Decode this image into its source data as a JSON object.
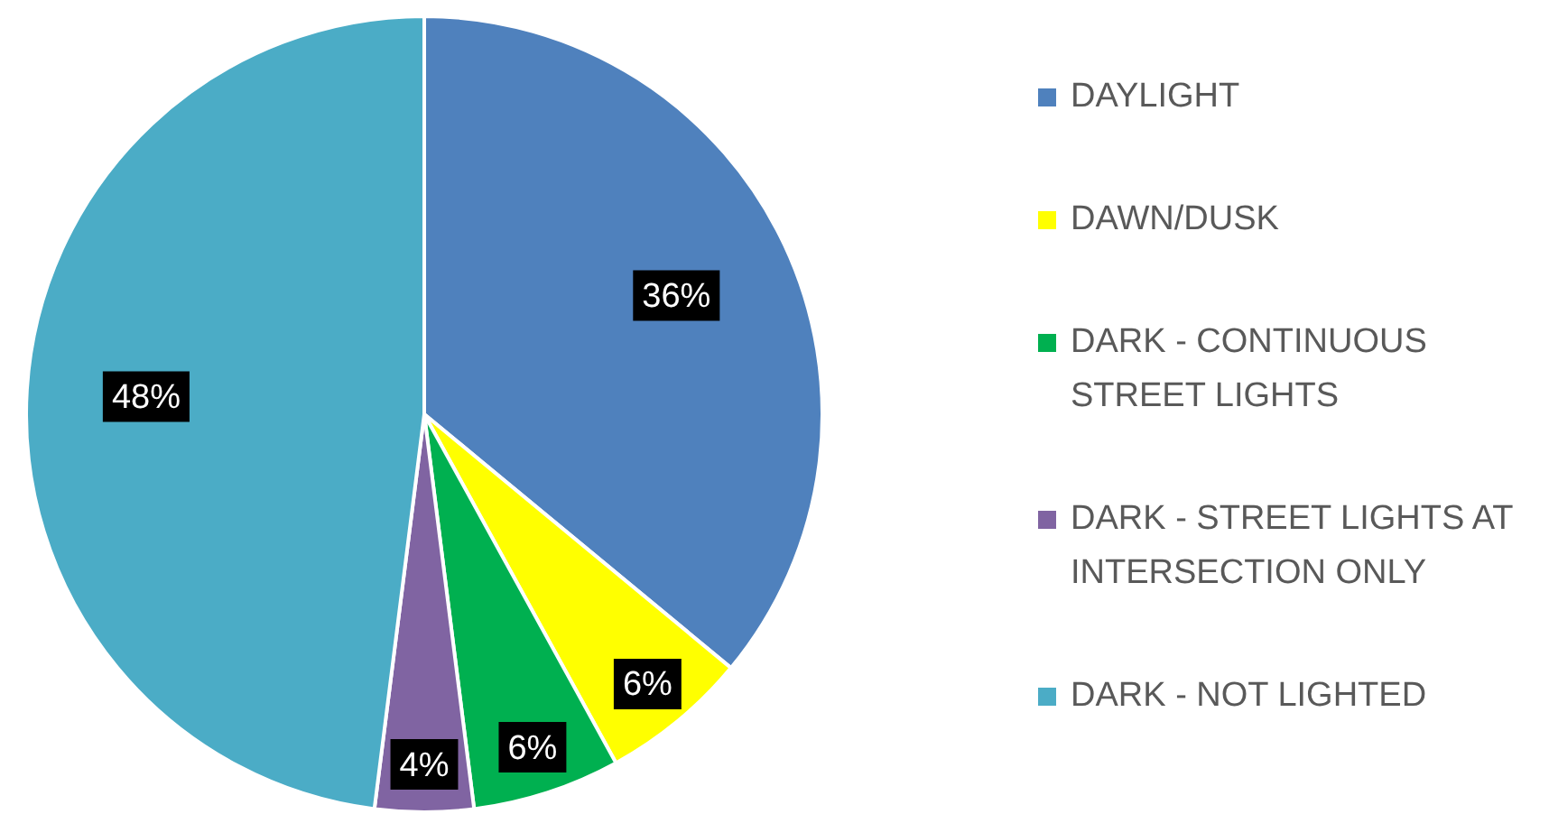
{
  "chart_data": {
    "type": "pie",
    "categories": [
      "DAYLIGHT",
      "DAWN/DUSK",
      "DARK - CONTINUOUS STREET LIGHTS",
      "DARK - STREET LIGHTS AT INTERSECTION ONLY",
      "DARK - NOT LIGHTED"
    ],
    "values": [
      36,
      6,
      6,
      4,
      48
    ],
    "colors": [
      "#4f81bd",
      "#ffff00",
      "#00b050",
      "#8064a2",
      "#4bacc6"
    ],
    "value_labels": [
      "36%",
      "6%",
      "6%",
      "4%",
      "48%"
    ],
    "legend": "right"
  }
}
